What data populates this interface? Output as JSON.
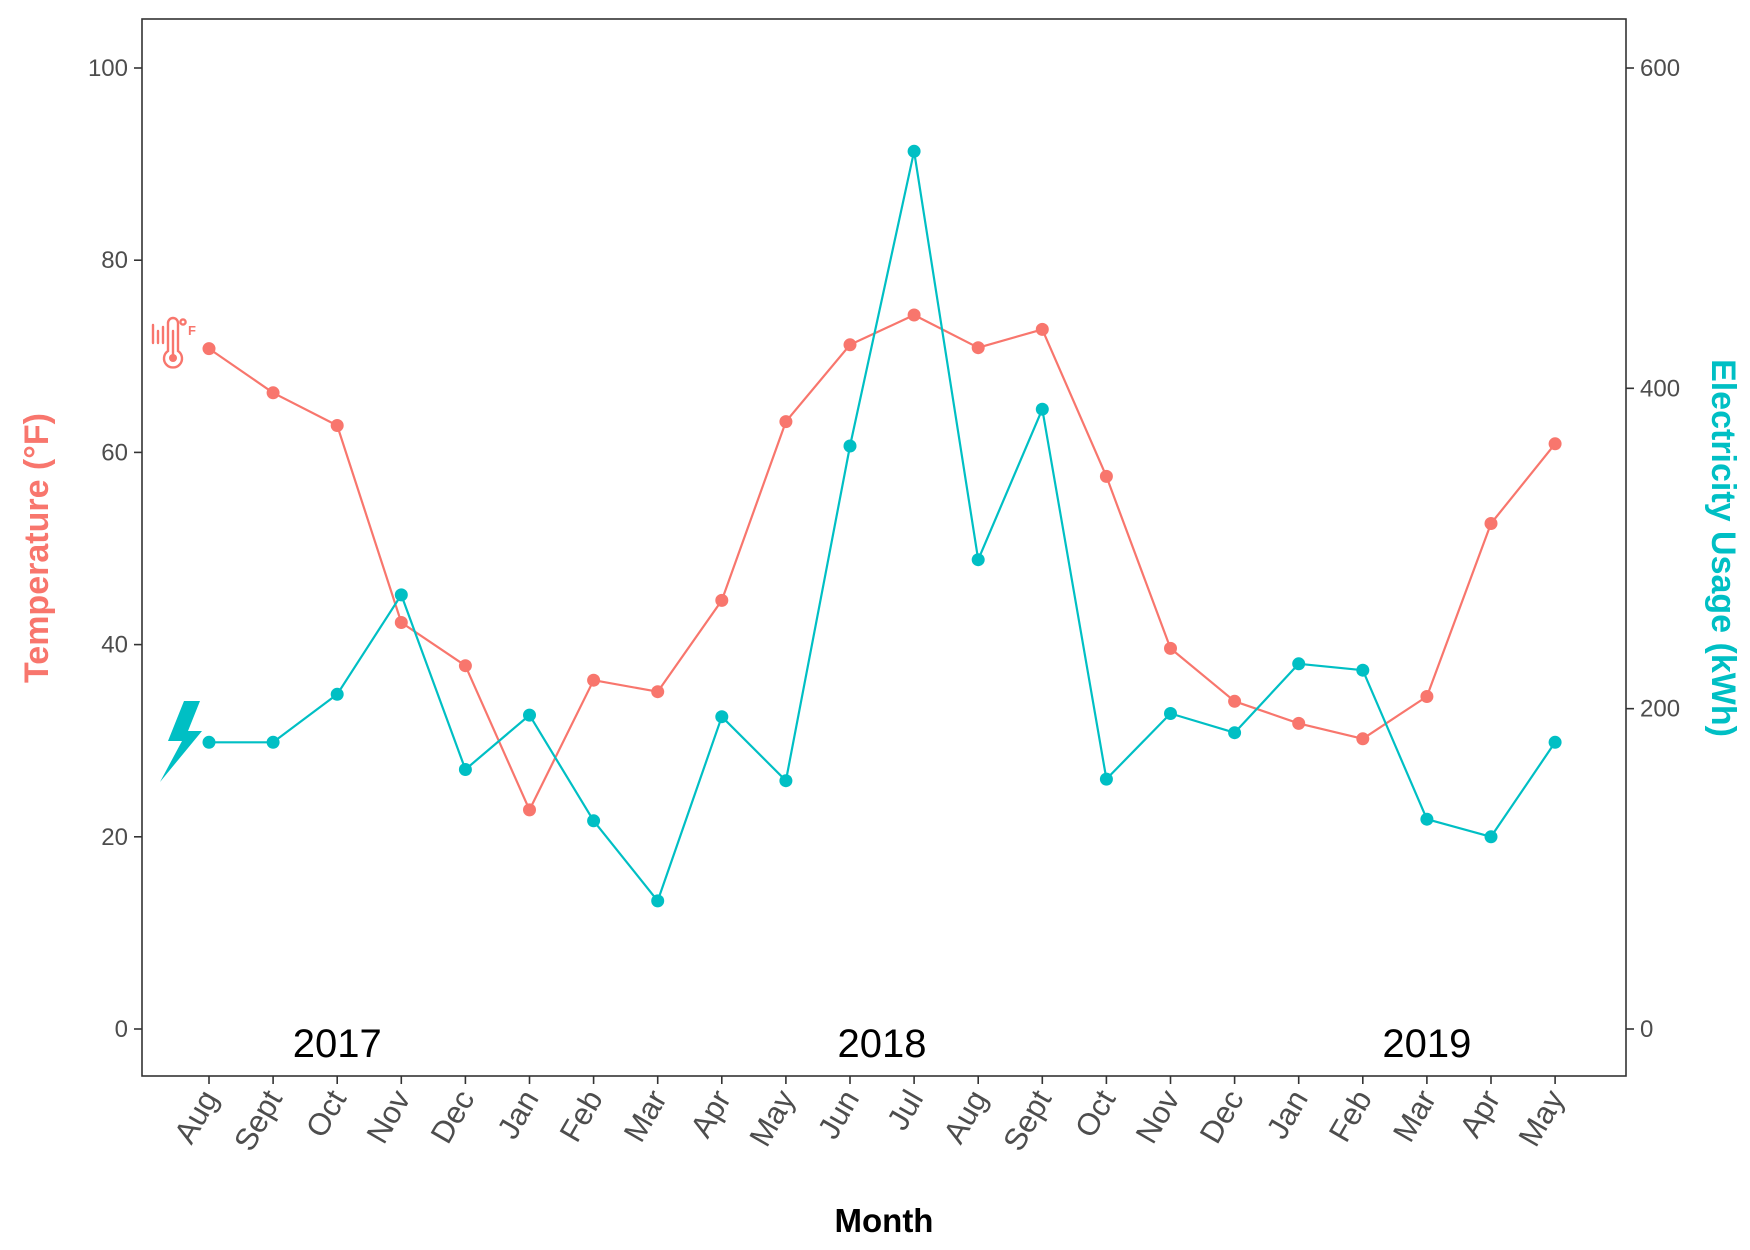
{
  "colors": {
    "temperature": "#F8766D",
    "electricity": "#00BFC4",
    "axis": "#333333",
    "tick_text": "#4d4d4d"
  },
  "chart_data": {
    "type": "line",
    "xlabel": "Month",
    "ylabel_left": "Temperature (°F)",
    "ylabel_right": "Electricity Usage (kWh)",
    "categories": [
      "Aug",
      "Sept",
      "Oct",
      "Nov",
      "Dec",
      "Jan",
      "Feb",
      "Mar",
      "Apr",
      "May",
      "Jun",
      "Jul",
      "Aug",
      "Sept",
      "Oct",
      "Nov",
      "Dec",
      "Jan",
      "Feb",
      "Mar",
      "Apr",
      "May"
    ],
    "ylim_left": [
      0,
      100
    ],
    "ylim_right": [
      0,
      600
    ],
    "yticks_left": [
      0,
      20,
      40,
      60,
      80,
      100
    ],
    "yticks_right": [
      0,
      200,
      400,
      600
    ],
    "series": [
      {
        "key": "temperature",
        "axis": "left",
        "icon": "thermometer-fahrenheit-icon",
        "values": [
          70.8,
          66.2,
          62.8,
          42.3,
          37.8,
          22.8,
          36.3,
          35.1,
          44.6,
          63.2,
          71.2,
          74.3,
          70.9,
          72.8,
          57.5,
          39.6,
          34.1,
          31.8,
          30.2,
          34.6,
          52.6,
          60.9
        ]
      },
      {
        "key": "electricity",
        "axis": "right",
        "icon": "lightning-bolt-icon",
        "values": [
          179,
          179,
          209,
          271,
          162,
          196,
          130,
          80,
          195,
          155,
          364,
          548,
          293,
          387,
          156,
          197,
          185,
          228,
          224,
          131,
          120,
          179
        ]
      }
    ],
    "annotations": [
      {
        "text": "2017",
        "category_index": 2
      },
      {
        "text": "2018",
        "category_index": 10.5
      },
      {
        "text": "2019",
        "category_index": 19
      }
    ],
    "grid": false,
    "legend": "none"
  }
}
